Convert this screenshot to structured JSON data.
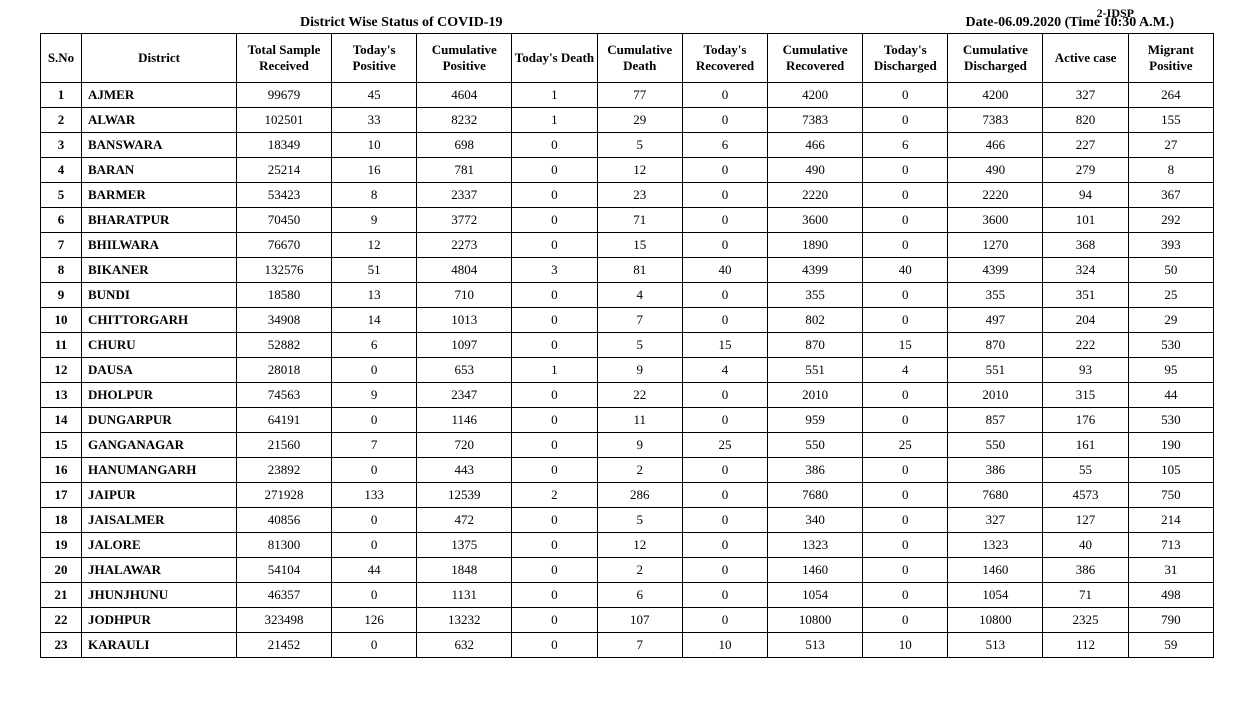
{
  "corner_label": "2-IDSP",
  "title_left": "District Wise Status of COVID-19",
  "title_right": "Date-06.09.2020 (Time 10:30 A.M.)",
  "columns": [
    "S.No",
    "District",
    "Total Sample Received",
    "Today's Positive",
    "Cumulative Positive",
    "Today's Death",
    "Cumulative Death",
    "Today's Recovered",
    "Cumulative Recovered",
    "Today's Discharged",
    "Cumulative Discharged",
    "Active case",
    "Migrant Positive"
  ],
  "rows": [
    [
      "1",
      "AJMER",
      "99679",
      "45",
      "4604",
      "1",
      "77",
      "0",
      "4200",
      "0",
      "4200",
      "327",
      "264"
    ],
    [
      "2",
      "ALWAR",
      "102501",
      "33",
      "8232",
      "1",
      "29",
      "0",
      "7383",
      "0",
      "7383",
      "820",
      "155"
    ],
    [
      "3",
      "BANSWARA",
      "18349",
      "10",
      "698",
      "0",
      "5",
      "6",
      "466",
      "6",
      "466",
      "227",
      "27"
    ],
    [
      "4",
      "BARAN",
      "25214",
      "16",
      "781",
      "0",
      "12",
      "0",
      "490",
      "0",
      "490",
      "279",
      "8"
    ],
    [
      "5",
      "BARMER",
      "53423",
      "8",
      "2337",
      "0",
      "23",
      "0",
      "2220",
      "0",
      "2220",
      "94",
      "367"
    ],
    [
      "6",
      "BHARATPUR",
      "70450",
      "9",
      "3772",
      "0",
      "71",
      "0",
      "3600",
      "0",
      "3600",
      "101",
      "292"
    ],
    [
      "7",
      "BHILWARA",
      "76670",
      "12",
      "2273",
      "0",
      "15",
      "0",
      "1890",
      "0",
      "1270",
      "368",
      "393"
    ],
    [
      "8",
      "BIKANER",
      "132576",
      "51",
      "4804",
      "3",
      "81",
      "40",
      "4399",
      "40",
      "4399",
      "324",
      "50"
    ],
    [
      "9",
      "BUNDI",
      "18580",
      "13",
      "710",
      "0",
      "4",
      "0",
      "355",
      "0",
      "355",
      "351",
      "25"
    ],
    [
      "10",
      "CHITTORGARH",
      "34908",
      "14",
      "1013",
      "0",
      "7",
      "0",
      "802",
      "0",
      "497",
      "204",
      "29"
    ],
    [
      "11",
      "CHURU",
      "52882",
      "6",
      "1097",
      "0",
      "5",
      "15",
      "870",
      "15",
      "870",
      "222",
      "530"
    ],
    [
      "12",
      "DAUSA",
      "28018",
      "0",
      "653",
      "1",
      "9",
      "4",
      "551",
      "4",
      "551",
      "93",
      "95"
    ],
    [
      "13",
      "DHOLPUR",
      "74563",
      "9",
      "2347",
      "0",
      "22",
      "0",
      "2010",
      "0",
      "2010",
      "315",
      "44"
    ],
    [
      "14",
      "DUNGARPUR",
      "64191",
      "0",
      "1146",
      "0",
      "11",
      "0",
      "959",
      "0",
      "857",
      "176",
      "530"
    ],
    [
      "15",
      "GANGANAGAR",
      "21560",
      "7",
      "720",
      "0",
      "9",
      "25",
      "550",
      "25",
      "550",
      "161",
      "190"
    ],
    [
      "16",
      "HANUMANGARH",
      "23892",
      "0",
      "443",
      "0",
      "2",
      "0",
      "386",
      "0",
      "386",
      "55",
      "105"
    ],
    [
      "17",
      "JAIPUR",
      "271928",
      "133",
      "12539",
      "2",
      "286",
      "0",
      "7680",
      "0",
      "7680",
      "4573",
      "750"
    ],
    [
      "18",
      "JAISALMER",
      "40856",
      "0",
      "472",
      "0",
      "5",
      "0",
      "340",
      "0",
      "327",
      "127",
      "214"
    ],
    [
      "19",
      "JALORE",
      "81300",
      "0",
      "1375",
      "0",
      "12",
      "0",
      "1323",
      "0",
      "1323",
      "40",
      "713"
    ],
    [
      "20",
      "JHALAWAR",
      "54104",
      "44",
      "1848",
      "0",
      "2",
      "0",
      "1460",
      "0",
      "1460",
      "386",
      "31"
    ],
    [
      "21",
      "JHUNJHUNU",
      "46357",
      "0",
      "1131",
      "0",
      "6",
      "0",
      "1054",
      "0",
      "1054",
      "71",
      "498"
    ],
    [
      "22",
      "JODHPUR",
      "323498",
      "126",
      "13232",
      "0",
      "107",
      "0",
      "10800",
      "0",
      "10800",
      "2325",
      "790"
    ],
    [
      "23",
      "KARAULI",
      "21452",
      "0",
      "632",
      "0",
      "7",
      "10",
      "513",
      "10",
      "513",
      "112",
      "59"
    ]
  ]
}
